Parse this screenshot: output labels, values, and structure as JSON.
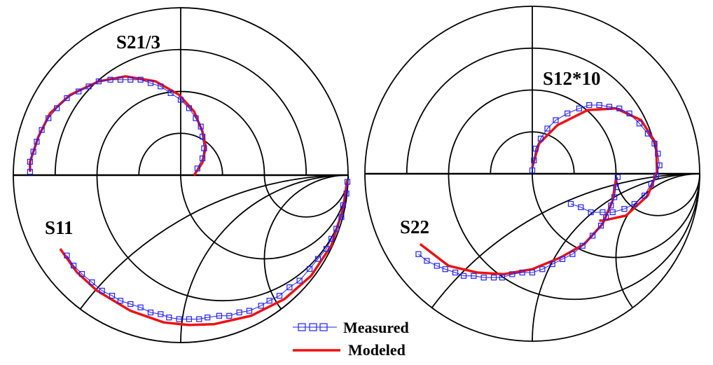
{
  "colors": {
    "measured": "#1f1fff",
    "modeled": "#ee1111",
    "grid": "#000000"
  },
  "legend": {
    "measured_label": "Measured",
    "modeled_label": "Modeled"
  },
  "chart_data": [
    {
      "type": "line",
      "subtype": "smith-polar",
      "grid": {
        "polar_top_radii": [
          0.25,
          0.5,
          0.75,
          1.0
        ],
        "smith_bottom_r": [
          0.3333,
          1,
          3
        ],
        "smith_bottom_x": [
          -0.5,
          -1,
          -2
        ]
      },
      "xlim": [
        -1,
        1
      ],
      "ylim": [
        -1,
        1
      ],
      "traces": [
        {
          "label": "S21/3",
          "measured": [
            [
              -0.9,
              0.02
            ],
            [
              -0.9,
              0.08
            ],
            [
              -0.88,
              0.14
            ],
            [
              -0.86,
              0.2
            ],
            [
              -0.83,
              0.27
            ],
            [
              -0.79,
              0.34
            ],
            [
              -0.74,
              0.4
            ],
            [
              -0.68,
              0.46
            ],
            [
              -0.61,
              0.5
            ],
            [
              -0.55,
              0.53
            ],
            [
              -0.49,
              0.56
            ],
            [
              -0.42,
              0.57
            ],
            [
              -0.36,
              0.57
            ],
            [
              -0.3,
              0.57
            ],
            [
              -0.24,
              0.57
            ],
            [
              -0.18,
              0.55
            ],
            [
              -0.12,
              0.53
            ],
            [
              -0.06,
              0.49
            ],
            [
              0.0,
              0.45
            ],
            [
              0.05,
              0.4
            ],
            [
              0.09,
              0.34
            ],
            [
              0.12,
              0.29
            ],
            [
              0.13,
              0.23
            ],
            [
              0.14,
              0.16
            ],
            [
              0.13,
              0.1
            ],
            [
              0.1,
              0.04
            ]
          ],
          "modeled": [
            [
              0.08,
              0.0
            ],
            [
              0.13,
              0.075
            ],
            [
              0.15,
              0.17
            ],
            [
              0.13,
              0.26
            ],
            [
              0.08,
              0.38
            ],
            [
              -0.01,
              0.48
            ],
            [
              -0.15,
              0.56
            ],
            [
              -0.33,
              0.59
            ],
            [
              -0.49,
              0.56
            ],
            [
              -0.66,
              0.48
            ],
            [
              -0.78,
              0.37
            ],
            [
              -0.85,
              0.23
            ],
            [
              -0.9,
              0.08
            ],
            [
              -0.9,
              0.02
            ]
          ]
        },
        {
          "label": "S11",
          "measured": [
            [
              0.996,
              -0.04
            ],
            [
              0.99,
              -0.11
            ],
            [
              0.97,
              -0.18
            ],
            [
              0.96,
              -0.25
            ],
            [
              0.93,
              -0.32
            ],
            [
              0.9,
              -0.38
            ],
            [
              0.87,
              -0.44
            ],
            [
              0.82,
              -0.5
            ],
            [
              0.77,
              -0.56
            ],
            [
              0.71,
              -0.63
            ],
            [
              0.65,
              -0.67
            ],
            [
              0.59,
              -0.72
            ],
            [
              0.53,
              -0.75
            ],
            [
              0.48,
              -0.78
            ],
            [
              0.41,
              -0.81
            ],
            [
              0.35,
              -0.82
            ],
            [
              0.29,
              -0.84
            ],
            [
              0.23,
              -0.84
            ],
            [
              0.16,
              -0.85
            ],
            [
              0.11,
              -0.86
            ],
            [
              0.05,
              -0.86
            ],
            [
              -0.01,
              -0.86
            ],
            [
              -0.07,
              -0.85
            ],
            [
              -0.12,
              -0.83
            ],
            [
              -0.18,
              -0.82
            ],
            [
              -0.24,
              -0.79
            ],
            [
              -0.3,
              -0.77
            ],
            [
              -0.36,
              -0.75
            ],
            [
              -0.41,
              -0.72
            ],
            [
              -0.47,
              -0.69
            ],
            [
              -0.53,
              -0.64
            ],
            [
              -0.59,
              -0.59
            ],
            [
              -0.64,
              -0.54
            ],
            [
              -0.68,
              -0.48
            ]
          ],
          "modeled": [
            [
              0.995,
              -0.03
            ],
            [
              0.97,
              -0.2
            ],
            [
              0.9,
              -0.42
            ],
            [
              0.78,
              -0.6
            ],
            [
              0.62,
              -0.74
            ],
            [
              0.42,
              -0.84
            ],
            [
              0.2,
              -0.89
            ],
            [
              0.05,
              -0.895
            ],
            [
              -0.1,
              -0.88
            ],
            [
              -0.3,
              -0.81
            ],
            [
              -0.5,
              -0.69
            ],
            [
              -0.62,
              -0.58
            ],
            [
              -0.72,
              -0.44
            ]
          ]
        }
      ]
    },
    {
      "type": "line",
      "subtype": "smith-polar",
      "grid": {
        "polar_top_radii": [
          0.25,
          0.5,
          0.75,
          1.0
        ],
        "smith_bottom_r": [
          0.3333,
          1,
          3
        ],
        "smith_bottom_x": [
          -0.5,
          -1,
          -2
        ]
      },
      "xlim": [
        -1,
        1
      ],
      "ylim": [
        -1,
        1
      ],
      "traces": [
        {
          "label": "S12*10",
          "measured": [
            [
              0.0,
              0.02
            ],
            [
              0.01,
              0.08
            ],
            [
              0.02,
              0.15
            ],
            [
              0.05,
              0.21
            ],
            [
              0.09,
              0.27
            ],
            [
              0.14,
              0.32
            ],
            [
              0.21,
              0.36
            ],
            [
              0.28,
              0.39
            ],
            [
              0.34,
              0.41
            ],
            [
              0.4,
              0.41
            ],
            [
              0.46,
              0.4
            ],
            [
              0.52,
              0.39
            ],
            [
              0.58,
              0.36
            ],
            [
              0.64,
              0.3
            ],
            [
              0.69,
              0.24
            ],
            [
              0.73,
              0.18
            ],
            [
              0.75,
              0.12
            ],
            [
              0.76,
              0.05
            ],
            [
              0.74,
              -0.01
            ],
            [
              0.71,
              -0.06
            ],
            [
              0.67,
              -0.13
            ],
            [
              0.61,
              -0.18
            ],
            [
              0.55,
              -0.21
            ],
            [
              0.48,
              -0.23
            ],
            [
              0.42,
              -0.23
            ],
            [
              0.35,
              -0.23
            ],
            [
              0.29,
              -0.2
            ],
            [
              0.23,
              -0.18
            ]
          ],
          "modeled": [
            [
              0.0,
              0.04
            ],
            [
              0.04,
              0.18
            ],
            [
              0.15,
              0.29
            ],
            [
              0.33,
              0.38
            ],
            [
              0.5,
              0.39
            ],
            [
              0.65,
              0.32
            ],
            [
              0.74,
              0.18
            ],
            [
              0.745,
              0.01
            ],
            [
              0.69,
              -0.13
            ],
            [
              0.56,
              -0.25
            ],
            [
              0.42,
              -0.28
            ],
            [
              0.4,
              -0.28
            ]
          ]
        },
        {
          "label": "S22",
          "measured": [
            [
              0.51,
              -0.02
            ],
            [
              0.5,
              -0.08
            ],
            [
              0.49,
              -0.14
            ],
            [
              0.47,
              -0.19
            ],
            [
              0.44,
              -0.26
            ],
            [
              0.41,
              -0.31
            ],
            [
              0.36,
              -0.37
            ],
            [
              0.3,
              -0.43
            ],
            [
              0.24,
              -0.48
            ],
            [
              0.18,
              -0.51
            ],
            [
              0.12,
              -0.54
            ],
            [
              0.06,
              -0.57
            ],
            [
              0.0,
              -0.59
            ],
            [
              -0.06,
              -0.59
            ],
            [
              -0.12,
              -0.6
            ],
            [
              -0.18,
              -0.62
            ],
            [
              -0.23,
              -0.62
            ],
            [
              -0.29,
              -0.62
            ],
            [
              -0.35,
              -0.61
            ],
            [
              -0.41,
              -0.61
            ],
            [
              -0.46,
              -0.59
            ],
            [
              -0.52,
              -0.57
            ],
            [
              -0.57,
              -0.55
            ],
            [
              -0.63,
              -0.52
            ],
            [
              -0.68,
              -0.48
            ]
          ],
          "modeled": [
            [
              0.5,
              -0.03
            ],
            [
              0.48,
              -0.16
            ],
            [
              0.42,
              -0.3
            ],
            [
              0.31,
              -0.42
            ],
            [
              0.17,
              -0.5
            ],
            [
              0.0,
              -0.57
            ],
            [
              -0.17,
              -0.6
            ],
            [
              -0.33,
              -0.59
            ],
            [
              -0.5,
              -0.55
            ],
            [
              -0.67,
              -0.42
            ]
          ]
        }
      ]
    }
  ]
}
